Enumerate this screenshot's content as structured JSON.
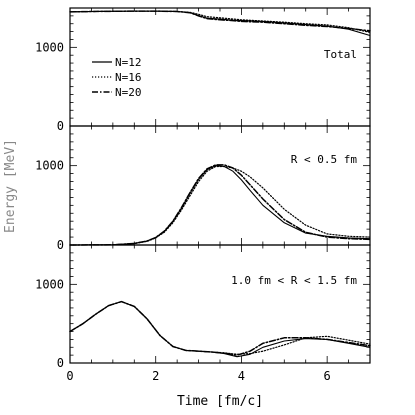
{
  "chart_data": {
    "type": "line",
    "xlabel": "Time [fm/c]",
    "ylabel": "Energy [MeV]",
    "xlim": [
      0,
      7
    ],
    "xticks": [
      "0",
      "2",
      "4",
      "6"
    ],
    "legend": {
      "placement": "top-left of top panel",
      "entries": [
        "N=12",
        "N=16",
        "N=20"
      ]
    },
    "panels": [
      {
        "label": "Total",
        "ylim": [
          0,
          1500
        ],
        "yticks": [
          "0",
          "1000"
        ],
        "series": [
          {
            "name": "N=12",
            "style": "solid",
            "x": [
              0,
              0.5,
              1,
              1.5,
              2,
              2.5,
              2.8,
              3.0,
              3.2,
              3.5,
              3.8,
              4.0,
              4.5,
              5.0,
              5.5,
              6.0,
              6.5,
              7.0
            ],
            "y": [
              1450,
              1455,
              1458,
              1460,
              1460,
              1455,
              1440,
              1405,
              1370,
              1360,
              1345,
              1340,
              1330,
              1310,
              1290,
              1270,
              1230,
              1150
            ]
          },
          {
            "name": "N=16",
            "style": "dotted",
            "x": [
              0,
              0.5,
              1,
              1.5,
              2,
              2.5,
              2.8,
              3.0,
              3.2,
              3.5,
              3.8,
              4.0,
              4.5,
              5.0,
              5.5,
              6.0,
              6.5,
              7.0
            ],
            "y": [
              1450,
              1455,
              1458,
              1460,
              1460,
              1455,
              1445,
              1420,
              1390,
              1375,
              1360,
              1350,
              1335,
              1320,
              1300,
              1285,
              1250,
              1190
            ]
          },
          {
            "name": "N=20",
            "style": "dash-dot",
            "x": [
              0,
              0.5,
              1,
              1.5,
              2,
              2.5,
              2.8,
              3.0,
              3.2,
              3.5,
              3.8,
              4.0,
              4.5,
              5.0,
              5.5,
              6.0,
              6.5,
              7.0
            ],
            "y": [
              1450,
              1455,
              1458,
              1460,
              1460,
              1455,
              1440,
              1400,
              1365,
              1350,
              1340,
              1330,
              1320,
              1300,
              1280,
              1265,
              1240,
              1210
            ]
          }
        ]
      },
      {
        "label": "R < 0.5 fm",
        "ylim": [
          0,
          1500
        ],
        "yticks": [
          "0",
          "1000"
        ],
        "series": [
          {
            "name": "N=12",
            "style": "solid",
            "x": [
              0,
              1.0,
              1.5,
              1.8,
              2.0,
              2.2,
              2.4,
              2.6,
              2.8,
              3.0,
              3.2,
              3.4,
              3.6,
              3.8,
              4.0,
              4.2,
              4.5,
              5.0,
              5.5,
              6.0,
              6.5,
              7.0
            ],
            "y": [
              0,
              3,
              20,
              50,
              95,
              170,
              300,
              460,
              650,
              830,
              950,
              1000,
              990,
              930,
              820,
              690,
              500,
              280,
              150,
              110,
              90,
              80
            ]
          },
          {
            "name": "N=16",
            "style": "dotted",
            "x": [
              0,
              1.0,
              1.5,
              1.8,
              2.0,
              2.2,
              2.4,
              2.6,
              2.8,
              3.0,
              3.2,
              3.4,
              3.6,
              3.8,
              4.0,
              4.2,
              4.5,
              5.0,
              5.5,
              6.0,
              6.5,
              7.0
            ],
            "y": [
              0,
              3,
              18,
              45,
              90,
              160,
              280,
              440,
              620,
              800,
              930,
              990,
              990,
              970,
              930,
              860,
              720,
              450,
              250,
              140,
              110,
              100
            ]
          },
          {
            "name": "N=20",
            "style": "dash-dot",
            "x": [
              0,
              1.0,
              1.5,
              1.8,
              2.0,
              2.2,
              2.4,
              2.6,
              2.8,
              3.0,
              3.2,
              3.4,
              3.6,
              3.8,
              4.0,
              4.2,
              4.5,
              5.0,
              5.5,
              6.0,
              6.5,
              7.0
            ],
            "y": [
              0,
              3,
              20,
              50,
              95,
              175,
              300,
              470,
              660,
              840,
              960,
              1010,
              1010,
              970,
              880,
              760,
              580,
              320,
              160,
              100,
              80,
              70
            ]
          }
        ]
      },
      {
        "label": "1.0 fm < R < 1.5 fm",
        "ylim": [
          0,
          1500
        ],
        "yticks": [
          "0",
          "1000"
        ],
        "series": [
          {
            "name": "N=12",
            "style": "solid",
            "x": [
              0,
              0.3,
              0.6,
              0.9,
              1.2,
              1.5,
              1.8,
              2.1,
              2.4,
              2.7,
              3.0,
              3.3,
              3.6,
              3.9,
              4.2,
              4.5,
              5.0,
              5.5,
              6.0,
              6.5,
              7.0
            ],
            "y": [
              400,
              500,
              620,
              730,
              780,
              720,
              560,
              350,
              210,
              160,
              150,
              140,
              120,
              80,
              110,
              200,
              280,
              310,
              300,
              250,
              200
            ]
          },
          {
            "name": "N=16",
            "style": "dotted",
            "x": [
              0,
              0.3,
              0.6,
              0.9,
              1.2,
              1.5,
              1.8,
              2.1,
              2.4,
              2.7,
              3.0,
              3.3,
              3.6,
              3.9,
              4.2,
              4.5,
              5.0,
              5.5,
              6.0,
              6.5,
              7.0
            ],
            "y": [
              400,
              500,
              620,
              730,
              780,
              720,
              560,
              350,
              210,
              160,
              150,
              140,
              130,
              110,
              120,
              150,
              230,
              320,
              340,
              290,
              240
            ]
          },
          {
            "name": "N=20",
            "style": "dash-dot",
            "x": [
              0,
              0.3,
              0.6,
              0.9,
              1.2,
              1.5,
              1.8,
              2.1,
              2.4,
              2.7,
              3.0,
              3.3,
              3.6,
              3.9,
              4.2,
              4.5,
              5.0,
              5.5,
              6.0,
              6.5,
              7.0
            ],
            "y": [
              400,
              500,
              620,
              730,
              780,
              720,
              560,
              350,
              210,
              160,
              150,
              140,
              125,
              100,
              150,
              250,
              320,
              320,
              300,
              260,
              220
            ]
          }
        ]
      }
    ]
  }
}
